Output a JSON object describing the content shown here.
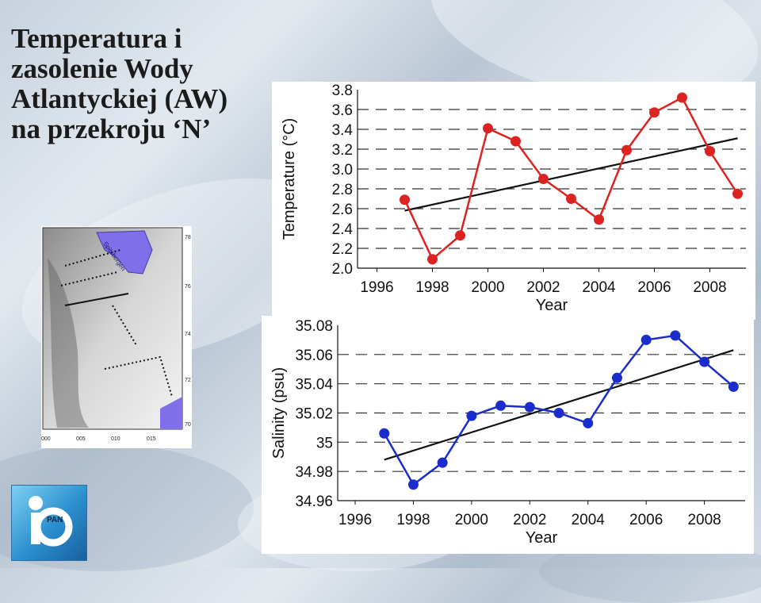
{
  "slide": {
    "title": "Temperatura i\nzasolenie Wody\nAtlantyckiej (AW)\nna przekroju ‘N’"
  },
  "map": {
    "label_island": "Spitsbergen",
    "lat_labels": [
      "78",
      "76",
      "74",
      "72",
      "70"
    ],
    "lon_labels": [
      "000",
      "005",
      "010",
      "015"
    ],
    "colors": {
      "land": "#7f6fe8",
      "sections": "#111111"
    }
  },
  "logo": {
    "label": "PAN",
    "icon": "institute-logo-icon"
  },
  "chart_data": [
    {
      "type": "line",
      "ylabel": "Temperature (°C)",
      "xlabel": "Year",
      "x": [
        1997,
        1998,
        1999,
        2000,
        2001,
        2002,
        2003,
        2004,
        2005,
        2006,
        2007,
        2008,
        2009
      ],
      "series": [
        {
          "values": [
            2.69,
            2.09,
            2.33,
            3.41,
            3.28,
            2.9,
            2.7,
            2.49,
            3.19,
            3.57,
            3.72,
            3.18,
            2.75
          ],
          "color": "#dd2222"
        }
      ],
      "trend": {
        "x": [
          1997,
          2009
        ],
        "y": [
          2.58,
          3.31
        ],
        "color": "#111111"
      },
      "xlim": [
        1995.3,
        2009.3
      ],
      "ylim": [
        2.0,
        3.8
      ],
      "xticks": [
        1996,
        1998,
        2000,
        2002,
        2004,
        2006,
        2008
      ],
      "yticks": [
        {
          "value": 2.0,
          "label": "2.0"
        },
        {
          "value": 2.2,
          "label": "2.2"
        },
        {
          "value": 2.4,
          "label": "2.4"
        },
        {
          "value": 2.6,
          "label": "2.6"
        },
        {
          "value": 2.8,
          "label": "2.8"
        },
        {
          "value": 3.0,
          "label": "3.0"
        },
        {
          "value": 3.2,
          "label": "3.2"
        },
        {
          "value": 3.4,
          "label": "3.4"
        },
        {
          "value": 3.6,
          "label": "3.6"
        },
        {
          "value": 3.8,
          "label": "3.8"
        }
      ],
      "grid": "dashed-horizontal"
    },
    {
      "type": "line",
      "ylabel": "Salinity (psu)",
      "xlabel": "Year",
      "x": [
        1997,
        1998,
        1999,
        2000,
        2001,
        2002,
        2003,
        2004,
        2005,
        2006,
        2007,
        2008,
        2009
      ],
      "series": [
        {
          "values": [
            35.006,
            34.971,
            34.986,
            35.018,
            35.025,
            35.024,
            35.02,
            35.013,
            35.044,
            35.07,
            35.073,
            35.055,
            35.038
          ],
          "color": "#1a2ccc"
        }
      ],
      "trend": {
        "x": [
          1997,
          2009
        ],
        "y": [
          34.988,
          35.063
        ],
        "color": "#111111"
      },
      "xlim": [
        1995.4,
        2009.4
      ],
      "ylim": [
        34.96,
        35.08
      ],
      "xticks": [
        1996,
        1998,
        2000,
        2002,
        2004,
        2006,
        2008
      ],
      "yticks": [
        {
          "value": 34.96,
          "label": "34.96"
        },
        {
          "value": 34.98,
          "label": "34.98"
        },
        {
          "value": 35.0,
          "label": "35"
        },
        {
          "value": 35.02,
          "label": "35.02"
        },
        {
          "value": 35.04,
          "label": "35.04"
        },
        {
          "value": 35.06,
          "label": "35.06"
        },
        {
          "value": 35.08,
          "label": "35.08"
        }
      ],
      "grid": "dashed-horizontal"
    }
  ]
}
